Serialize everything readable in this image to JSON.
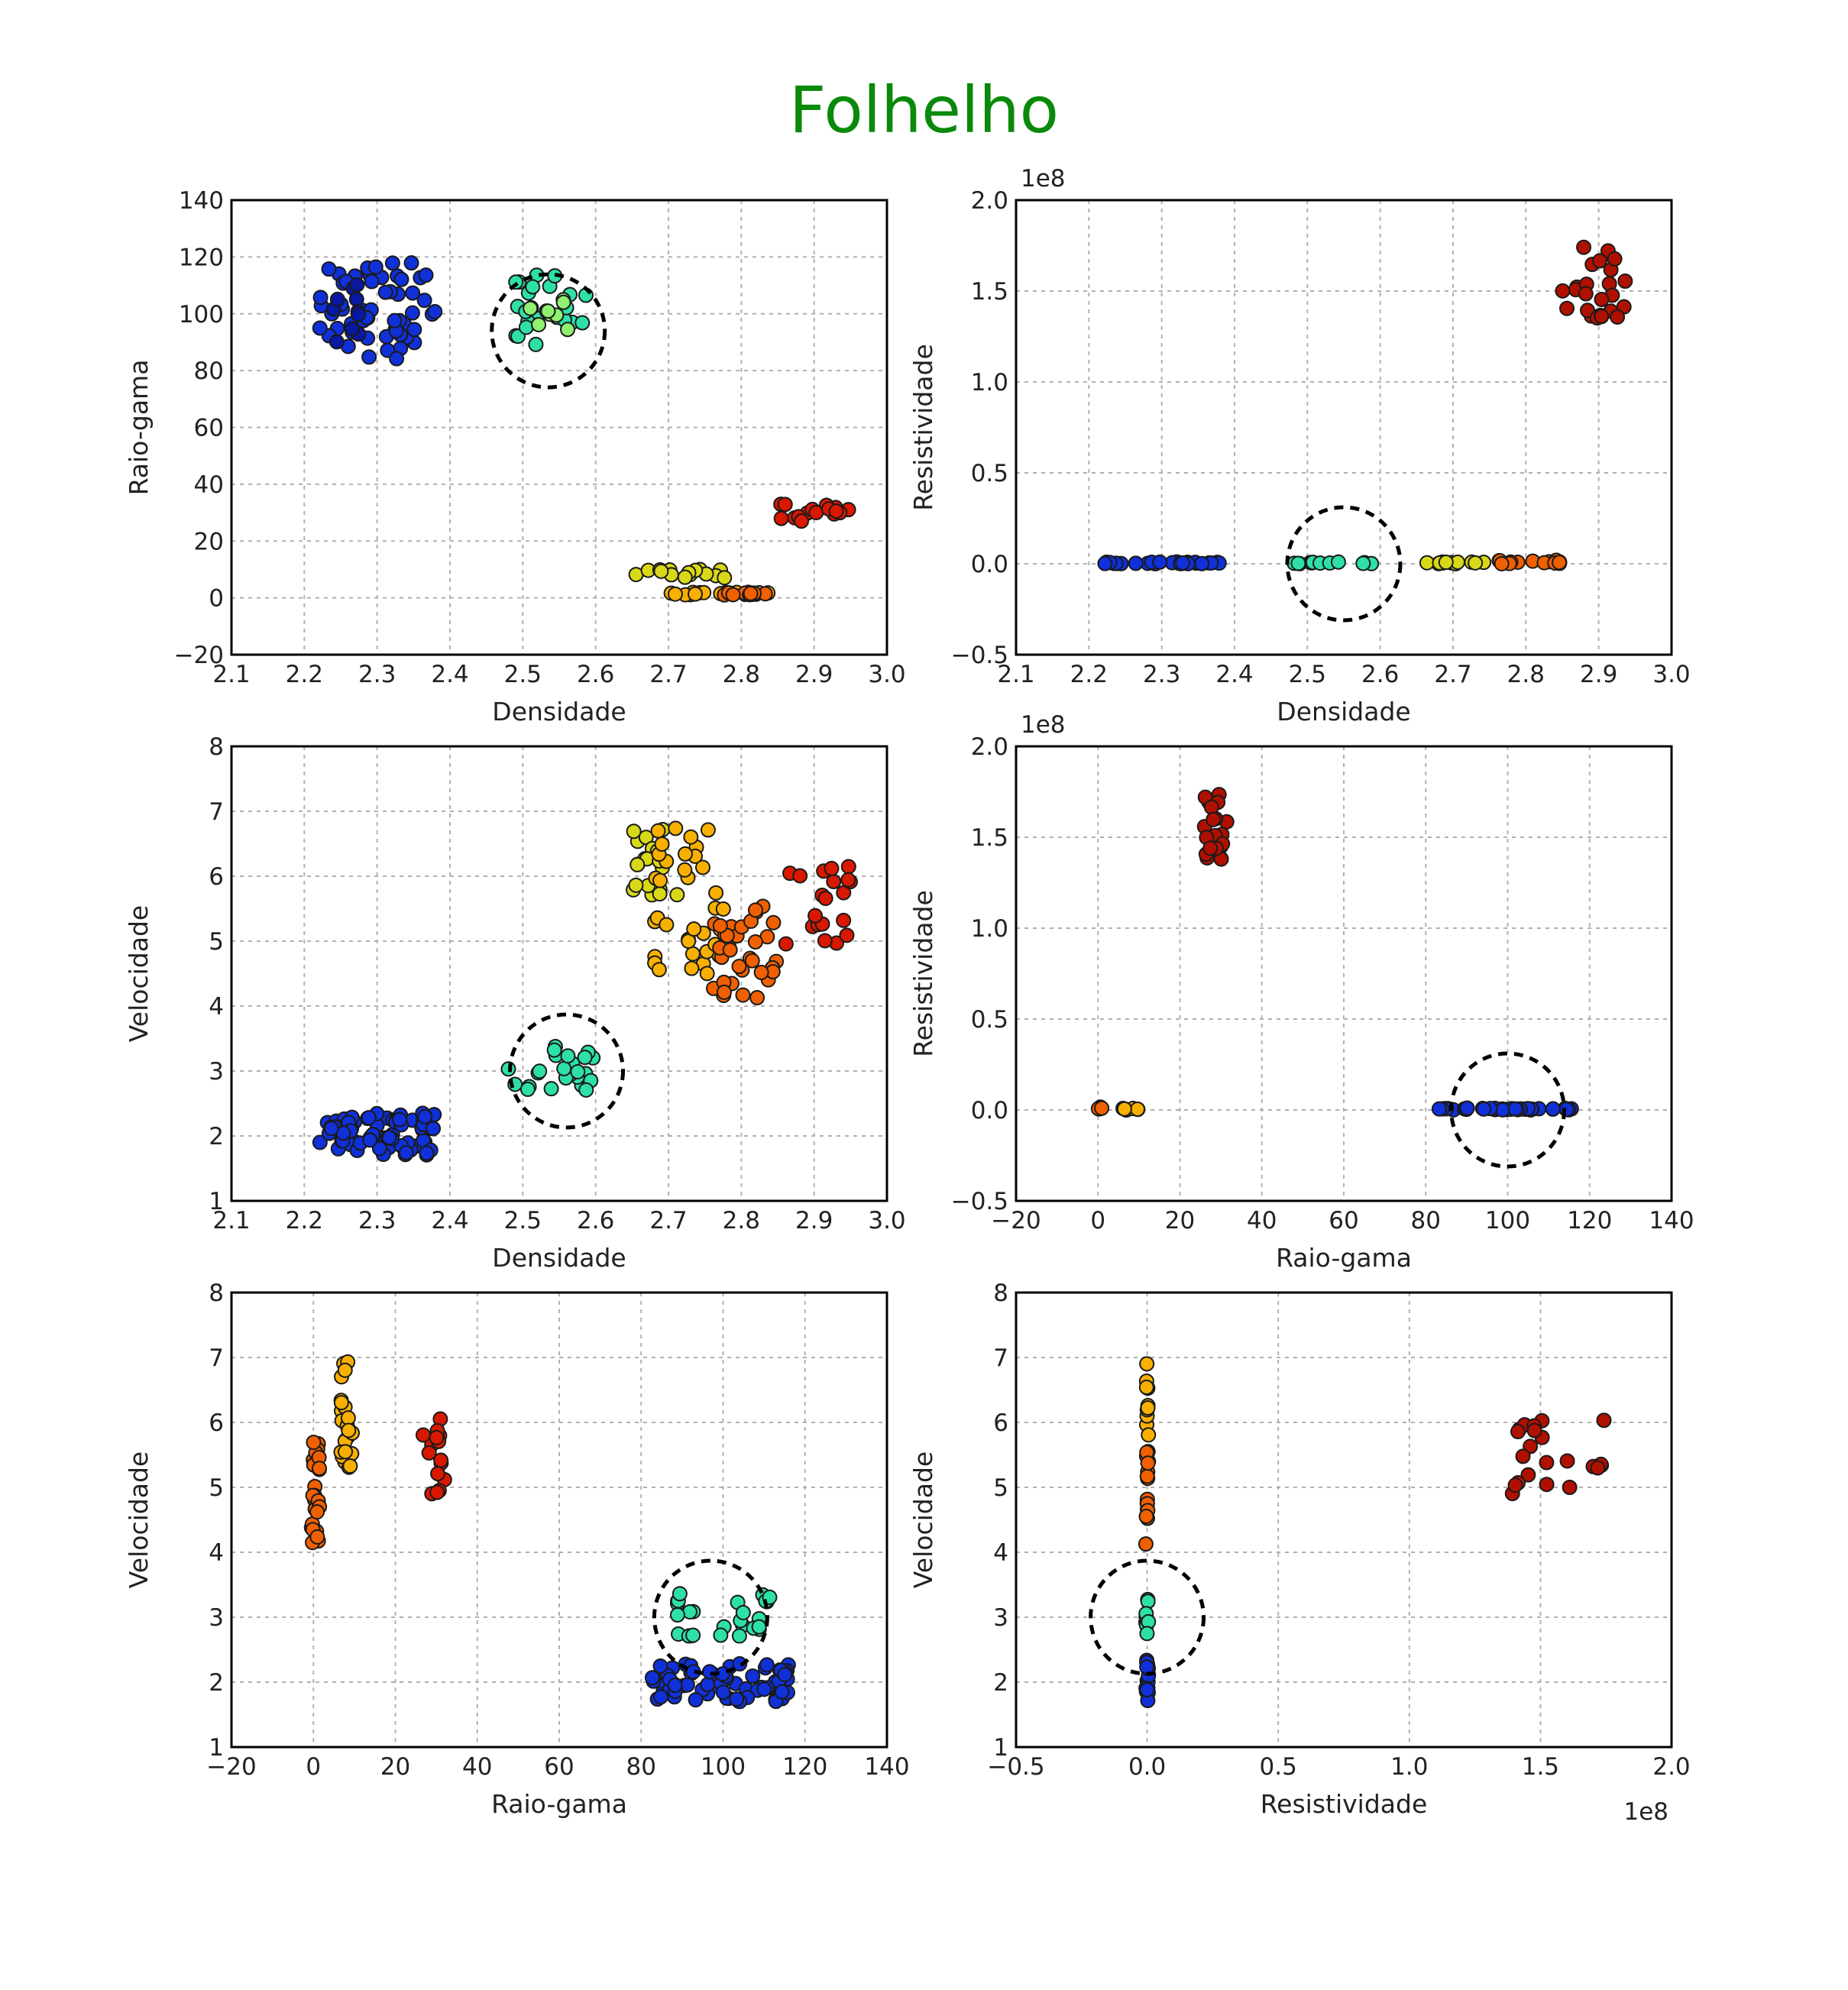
{
  "figure": {
    "title": "Folhelho",
    "title_color": "#0a8a0a"
  },
  "chart_data": [
    {
      "type": "scatter",
      "position": "top-left",
      "xlabel": "Densidade",
      "ylabel": "Raio-gama",
      "xlim": [
        2.1,
        3.0
      ],
      "ylim": [
        -20,
        140
      ],
      "xticks": [
        "2.1",
        "2.2",
        "2.3",
        "2.4",
        "2.5",
        "2.6",
        "2.7",
        "2.8",
        "2.9",
        "3.0"
      ],
      "yticks": [
        "−20",
        "0",
        "20",
        "40",
        "60",
        "80",
        "100",
        "120",
        "140"
      ],
      "offset_label": "",
      "grid": true,
      "clusters": [
        {
          "color": "#1030d8",
          "x": [
            2.22,
            2.38
          ],
          "y": [
            84,
            118
          ],
          "n": 60
        },
        {
          "color": "#0818a0",
          "x": [
            2.22,
            2.3
          ],
          "y": [
            90,
            112
          ],
          "n": 10
        },
        {
          "color": "#2ee0a8",
          "x": [
            2.48,
            2.59
          ],
          "y": [
            89,
            114
          ],
          "n": 24
        },
        {
          "color": "#90f070",
          "x": [
            2.5,
            2.58
          ],
          "y": [
            94,
            110
          ],
          "n": 8
        },
        {
          "color": "#d8d818",
          "x": [
            2.65,
            2.78
          ],
          "y": [
            7,
            10
          ],
          "n": 16
        },
        {
          "color": "#f8b000",
          "x": [
            2.7,
            2.85
          ],
          "y": [
            1,
            2
          ],
          "n": 18
        },
        {
          "color": "#f06000",
          "x": [
            2.76,
            2.85
          ],
          "y": [
            1,
            2
          ],
          "n": 8
        },
        {
          "color": "#d81800",
          "x": [
            2.85,
            2.95
          ],
          "y": [
            27,
            33
          ],
          "n": 16
        }
      ],
      "circle": {
        "x": 2.535,
        "y": 94
      }
    },
    {
      "type": "scatter",
      "position": "top-right",
      "xlabel": "Densidade",
      "ylabel": "Resistividade",
      "xlim": [
        2.1,
        3.0
      ],
      "ylim": [
        -0.5,
        2.0
      ],
      "xticks": [
        "2.1",
        "2.2",
        "2.3",
        "2.4",
        "2.5",
        "2.6",
        "2.7",
        "2.8",
        "2.9",
        "3.0"
      ],
      "yticks": [
        "−0.5",
        "0.0",
        "0.5",
        "1.0",
        "1.5",
        "2.0"
      ],
      "offset_label": "1e8",
      "grid": true,
      "clusters": [
        {
          "color": "#1030d8",
          "x": [
            2.22,
            2.38
          ],
          "y": [
            0,
            0.01
          ],
          "n": 30
        },
        {
          "color": "#2ee0a8",
          "x": [
            2.48,
            2.6
          ],
          "y": [
            0,
            0.01
          ],
          "n": 12
        },
        {
          "color": "#d8d818",
          "x": [
            2.65,
            2.75
          ],
          "y": [
            0,
            0.01
          ],
          "n": 14
        },
        {
          "color": "#f06000",
          "x": [
            2.75,
            2.85
          ],
          "y": [
            0,
            0.02
          ],
          "n": 14
        },
        {
          "color": "#b01000",
          "x": [
            2.85,
            2.94
          ],
          "y": [
            1.35,
            1.75
          ],
          "n": 24
        }
      ],
      "circle": {
        "x": 2.55,
        "y": 0.0
      }
    },
    {
      "type": "scatter",
      "position": "middle-left",
      "xlabel": "Densidade",
      "ylabel": "Velocidade",
      "xlim": [
        2.1,
        3.0
      ],
      "ylim": [
        1,
        8
      ],
      "xticks": [
        "2.1",
        "2.2",
        "2.3",
        "2.4",
        "2.5",
        "2.6",
        "2.7",
        "2.8",
        "2.9",
        "3.0"
      ],
      "yticks": [
        "1",
        "2",
        "3",
        "4",
        "5",
        "6",
        "7",
        "8"
      ],
      "offset_label": "",
      "grid": true,
      "clusters": [
        {
          "color": "#1030d8",
          "x": [
            2.22,
            2.38
          ],
          "y": [
            1.7,
            2.35
          ],
          "n": 70
        },
        {
          "color": "#2ee0a8",
          "x": [
            2.48,
            2.6
          ],
          "y": [
            2.7,
            3.4
          ],
          "n": 28
        },
        {
          "color": "#d8d818",
          "x": [
            2.65,
            2.72
          ],
          "y": [
            5.5,
            6.8
          ],
          "n": 20
        },
        {
          "color": "#f8b000",
          "x": [
            2.68,
            2.78
          ],
          "y": [
            4.5,
            7.0
          ],
          "n": 36
        },
        {
          "color": "#f06000",
          "x": [
            2.76,
            2.85
          ],
          "y": [
            4.1,
            5.6
          ],
          "n": 36
        },
        {
          "color": "#d81800",
          "x": [
            2.86,
            2.95
          ],
          "y": [
            4.9,
            6.2
          ],
          "n": 20
        }
      ],
      "circle": {
        "x": 2.56,
        "y": 3.0
      }
    },
    {
      "type": "scatter",
      "position": "middle-right",
      "xlabel": "Raio-gama",
      "ylabel": "Resistividade",
      "xlim": [
        -20,
        140
      ],
      "ylim": [
        -0.5,
        2.0
      ],
      "xticks": [
        "−20",
        "0",
        "20",
        "40",
        "60",
        "80",
        "100",
        "120",
        "140"
      ],
      "yticks": [
        "−0.5",
        "0.0",
        "0.5",
        "1.0",
        "1.5",
        "2.0"
      ],
      "offset_label": "1e8",
      "grid": true,
      "clusters": [
        {
          "color": "#1030d8",
          "x": [
            83,
            117
          ],
          "y": [
            0,
            0.01
          ],
          "n": 40
        },
        {
          "color": "#f06000",
          "x": [
            0,
            1
          ],
          "y": [
            0,
            0.02
          ],
          "n": 5
        },
        {
          "color": "#f8b000",
          "x": [
            6,
            10
          ],
          "y": [
            0,
            0.01
          ],
          "n": 6
        },
        {
          "color": "#b01000",
          "x": [
            26,
            32
          ],
          "y": [
            1.35,
            1.75
          ],
          "n": 22
        }
      ],
      "circle": {
        "x": 100,
        "y": 0.0
      }
    },
    {
      "type": "scatter",
      "position": "bottom-left",
      "xlabel": "Raio-gama",
      "ylabel": "Velocidade",
      "xlim": [
        -20,
        140
      ],
      "ylim": [
        1,
        8
      ],
      "xticks": [
        "−20",
        "0",
        "20",
        "40",
        "60",
        "80",
        "100",
        "120",
        "140"
      ],
      "yticks": [
        "1",
        "2",
        "3",
        "4",
        "5",
        "6",
        "7",
        "8"
      ],
      "offset_label": "",
      "grid": true,
      "clusters": [
        {
          "color": "#1030d8",
          "x": [
            82,
            117
          ],
          "y": [
            1.7,
            2.3
          ],
          "n": 70
        },
        {
          "color": "#2ee0a8",
          "x": [
            88,
            113
          ],
          "y": [
            2.7,
            3.4
          ],
          "n": 26
        },
        {
          "color": "#f06000",
          "x": [
            -0.5,
            1.5
          ],
          "y": [
            4.1,
            5.7
          ],
          "n": 24
        },
        {
          "color": "#f8b000",
          "x": [
            6.5,
            9.5
          ],
          "y": [
            5.2,
            7.0
          ],
          "n": 24
        },
        {
          "color": "#d81800",
          "x": [
            26,
            32
          ],
          "y": [
            4.9,
            6.2
          ],
          "n": 16
        }
      ],
      "circle": {
        "x": 97,
        "y": 3.0
      }
    },
    {
      "type": "scatter",
      "position": "bottom-right",
      "xlabel": "Resistividade",
      "ylabel": "Velocidade",
      "xlim": [
        -0.5,
        2.0
      ],
      "ylim": [
        1,
        8
      ],
      "xticks": [
        "−0.5",
        "0.0",
        "0.5",
        "1.0",
        "1.5",
        "2.0"
      ],
      "yticks": [
        "1",
        "2",
        "3",
        "4",
        "5",
        "6",
        "7",
        "8"
      ],
      "offset_label": "1e8",
      "grid": true,
      "clusters": [
        {
          "color": "#1030d8",
          "x": [
            -0.005,
            0.005
          ],
          "y": [
            1.7,
            2.4
          ],
          "n": 16
        },
        {
          "color": "#2ee0a8",
          "x": [
            -0.005,
            0.005
          ],
          "y": [
            2.7,
            3.4
          ],
          "n": 8
        },
        {
          "color": "#f06000",
          "x": [
            -0.005,
            0.005
          ],
          "y": [
            4.1,
            5.7
          ],
          "n": 16
        },
        {
          "color": "#f8b000",
          "x": [
            -0.005,
            0.005
          ],
          "y": [
            5.8,
            7.0
          ],
          "n": 10
        },
        {
          "color": "#b01000",
          "x": [
            1.35,
            1.75
          ],
          "y": [
            4.9,
            6.2
          ],
          "n": 22
        }
      ],
      "circle": {
        "x": 0.0,
        "y": 3.0
      }
    }
  ]
}
